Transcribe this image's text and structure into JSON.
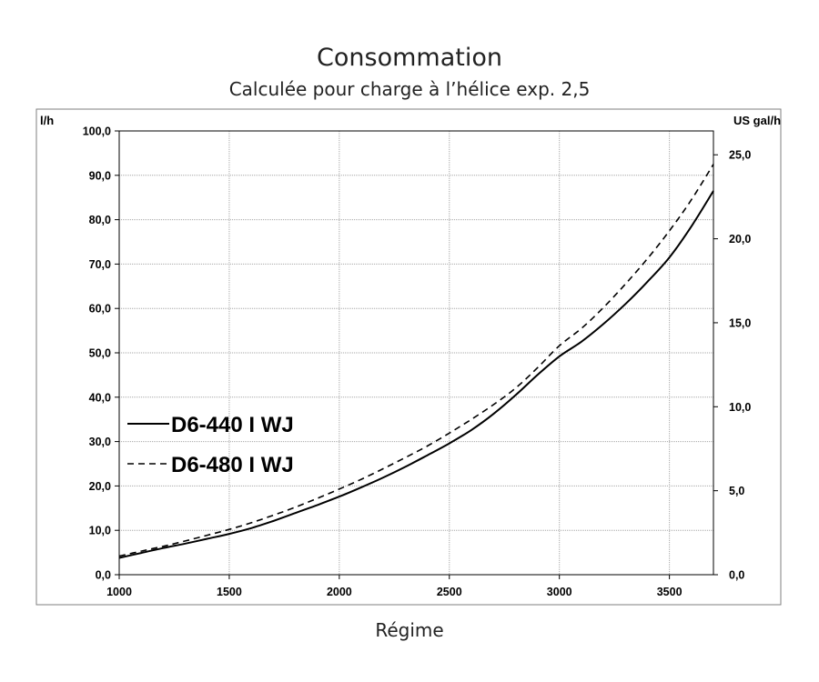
{
  "chart_data": {
    "type": "line",
    "title": "Consommation",
    "subtitle": "Calculée pour charge à l’hélice exp. 2,5",
    "xlabel": "Régime",
    "ylabel": "l/h",
    "y2label": "US gal/h",
    "xlim": [
      1000,
      3700
    ],
    "ylim": [
      0,
      100
    ],
    "y2lim": [
      0,
      26.42
    ],
    "x_ticks": [
      "1000",
      "1500",
      "2000",
      "2500",
      "3000",
      "3500"
    ],
    "x_tick_values": [
      1000,
      1500,
      2000,
      2500,
      3000,
      3500
    ],
    "y_ticks": [
      "0,0",
      "10,0",
      "20,0",
      "30,0",
      "40,0",
      "50,0",
      "60,0",
      "70,0",
      "80,0",
      "90,0",
      "100,0"
    ],
    "y_tick_values": [
      0,
      10,
      20,
      30,
      40,
      50,
      60,
      70,
      80,
      90,
      100
    ],
    "y2_ticks": [
      "0,0",
      "5,0",
      "10,0",
      "15,0",
      "20,0",
      "25,0"
    ],
    "y2_tick_values": [
      0,
      5,
      10,
      15,
      20,
      25
    ],
    "grid": true,
    "legend_position": "middle-left",
    "series": [
      {
        "name": "D6-440 I WJ",
        "style": "solid",
        "x": [
          1000,
          1100,
          1200,
          1300,
          1400,
          1500,
          1600,
          1700,
          1800,
          1900,
          2000,
          2100,
          2200,
          2300,
          2400,
          2500,
          2600,
          2700,
          2800,
          2900,
          3000,
          3100,
          3200,
          3300,
          3400,
          3500,
          3600,
          3700
        ],
        "values": [
          3.8,
          4.9,
          6.0,
          7.0,
          8.1,
          9.2,
          10.5,
          12.1,
          13.9,
          15.7,
          17.6,
          19.7,
          21.9,
          24.3,
          26.9,
          29.6,
          32.6,
          36.2,
          40.4,
          45.0,
          49.2,
          52.5,
          56.5,
          61.0,
          66.0,
          71.5,
          78.5,
          86.5
        ]
      },
      {
        "name": "D6-480 I WJ",
        "style": "dashed",
        "x": [
          1000,
          1100,
          1200,
          1300,
          1400,
          1500,
          1600,
          1700,
          1800,
          1900,
          2000,
          2100,
          2200,
          2300,
          2400,
          2500,
          2600,
          2700,
          2800,
          2900,
          3000,
          3100,
          3200,
          3300,
          3400,
          3500,
          3600,
          3700
        ],
        "values": [
          4.2,
          5.3,
          6.4,
          7.6,
          8.9,
          10.2,
          11.7,
          13.4,
          15.2,
          17.2,
          19.3,
          21.5,
          23.9,
          26.4,
          29.0,
          31.9,
          35.0,
          38.3,
          42.0,
          46.6,
          51.6,
          55.5,
          60.2,
          65.5,
          71.2,
          77.5,
          84.5,
          92.5
        ]
      }
    ]
  }
}
